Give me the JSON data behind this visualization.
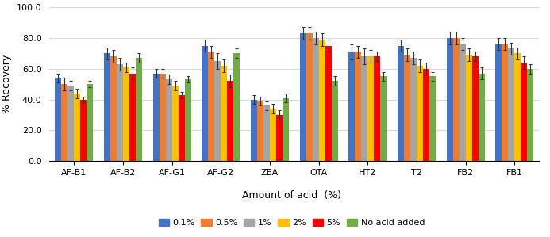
{
  "categories": [
    "AF-B1",
    "AF-B2",
    "AF-G1",
    "AF-G2",
    "ZEA",
    "OTA",
    "HT2",
    "T2",
    "FB2",
    "FB1"
  ],
  "series_labels": [
    "0.1%",
    "0.5%",
    "1%",
    "2%",
    "5%",
    "No acid added"
  ],
  "series_colors": [
    "#4472C4",
    "#ED7D31",
    "#A5A5A5",
    "#FFC000",
    "#FF0000",
    "#70AD47"
  ],
  "values": {
    "AF-B1": [
      54,
      50,
      49,
      44,
      40,
      50
    ],
    "AF-B2": [
      70,
      68,
      63,
      61,
      57,
      67
    ],
    "AF-G1": [
      57,
      57,
      53,
      49,
      43,
      53
    ],
    "AF-G2": [
      75,
      71,
      65,
      62,
      52,
      70
    ],
    "ZEA": [
      40,
      39,
      36,
      34,
      30,
      41
    ],
    "OTA": [
      83,
      83,
      80,
      79,
      75,
      52
    ],
    "HT2": [
      71,
      71,
      68,
      68,
      68,
      55
    ],
    "T2": [
      75,
      69,
      67,
      62,
      60,
      55
    ],
    "FB2": [
      80,
      80,
      76,
      69,
      68,
      57
    ],
    "FB1": [
      76,
      76,
      73,
      70,
      64,
      60
    ]
  },
  "errors": {
    "AF-B1": [
      3,
      4,
      3,
      3,
      2,
      2
    ],
    "AF-B2": [
      4,
      4,
      4,
      3,
      4,
      3
    ],
    "AF-G1": [
      3,
      3,
      3,
      3,
      2,
      2
    ],
    "AF-G2": [
      4,
      4,
      5,
      4,
      4,
      3
    ],
    "ZEA": [
      3,
      3,
      3,
      3,
      3,
      3
    ],
    "OTA": [
      4,
      4,
      4,
      4,
      4,
      3
    ],
    "HT2": [
      5,
      4,
      5,
      4,
      3,
      3
    ],
    "T2": [
      4,
      4,
      4,
      4,
      4,
      3
    ],
    "FB2": [
      4,
      4,
      4,
      4,
      3,
      4
    ],
    "FB1": [
      4,
      4,
      4,
      4,
      4,
      3
    ]
  },
  "ylabel": "% Recovery",
  "xlabel": "Amount of acid  (%)",
  "ylim": [
    0,
    100
  ],
  "yticks": [
    0.0,
    20.0,
    40.0,
    60.0,
    80.0,
    100.0
  ],
  "grid_color": "#D9D9D9",
  "bar_width": 0.13,
  "figsize": [
    6.93,
    2.99
  ],
  "dpi": 100
}
